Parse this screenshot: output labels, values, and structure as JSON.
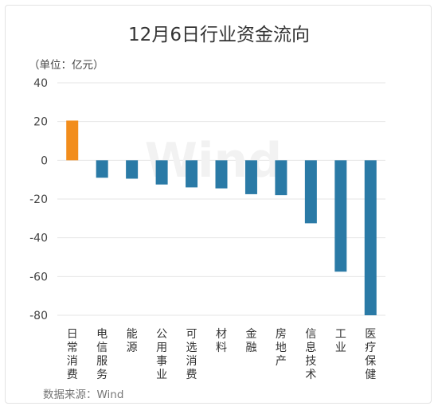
{
  "chart_data": {
    "type": "bar",
    "title": "12月6日行业资金流向",
    "unit_label": "（单位：亿元）",
    "source": "数据来源：Wind",
    "watermark": "Wind",
    "categories": [
      "日常消费",
      "电信服务",
      "能源",
      "公用事业",
      "可选消费",
      "材料",
      "金融",
      "房地产",
      "信息技术",
      "工业",
      "医疗保健"
    ],
    "values": [
      20.5,
      -9,
      -9.5,
      -12.5,
      -14,
      -14.5,
      -17.5,
      -18,
      -32.5,
      -57.5,
      -80
    ],
    "ylim": [
      -80,
      40
    ],
    "yticks": [
      40,
      20,
      0,
      -20,
      -40,
      -60,
      -80
    ],
    "grid": true,
    "colors": {
      "positive": "#f28d1c",
      "negative": "#2a7aa6"
    }
  }
}
